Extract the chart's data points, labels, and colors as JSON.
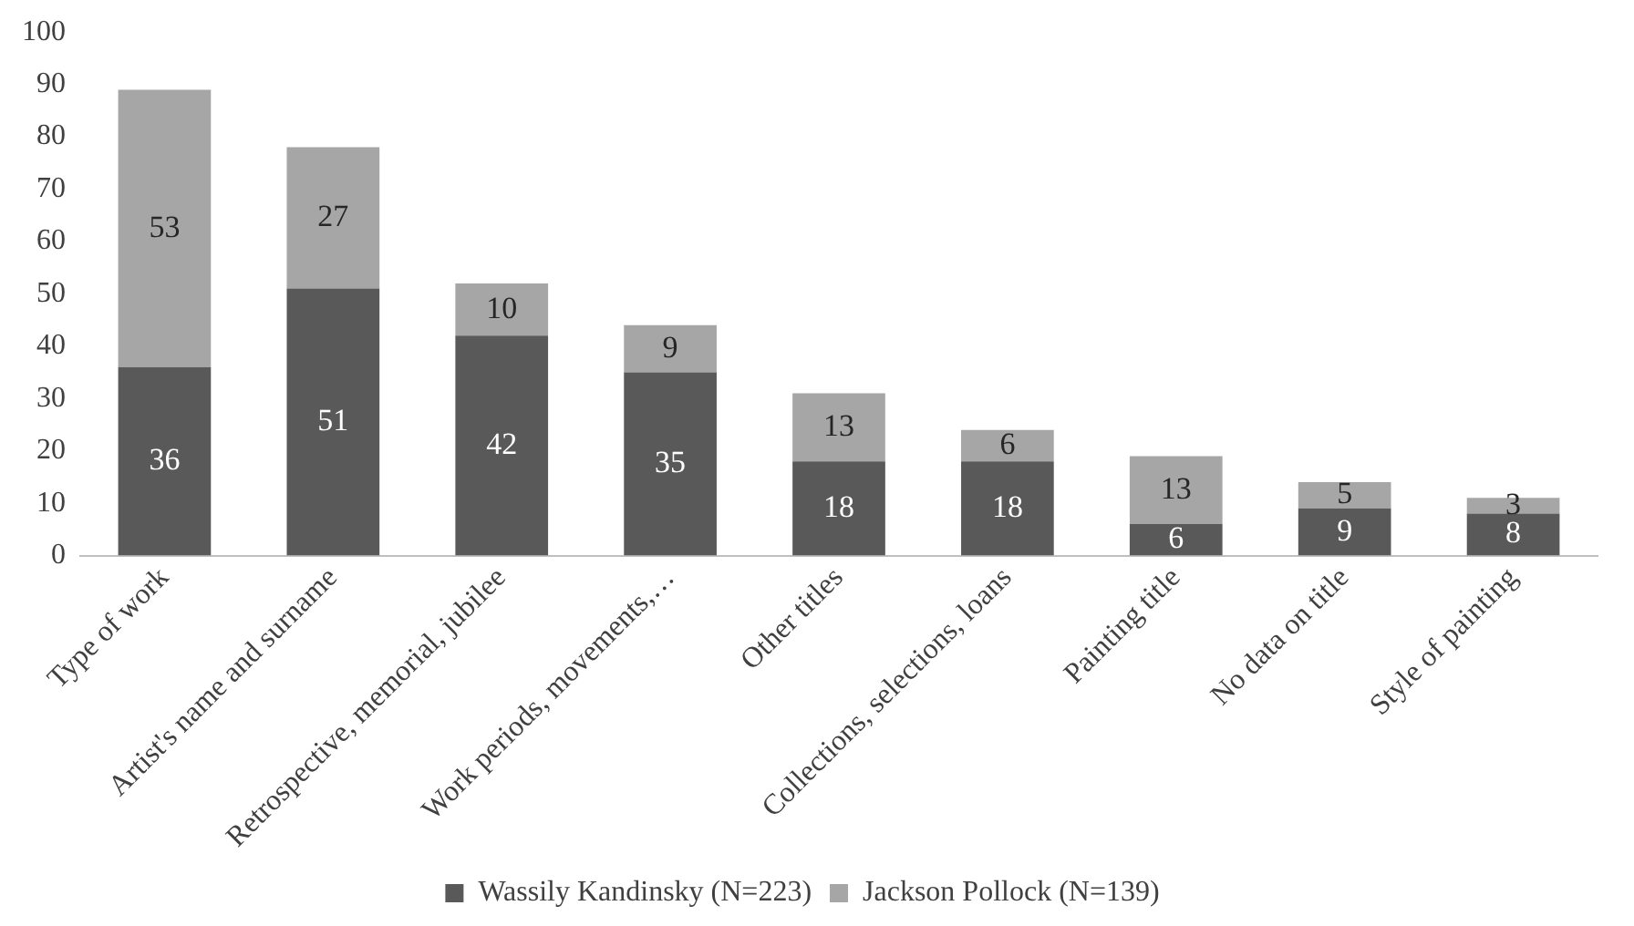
{
  "chart_data": {
    "type": "bar",
    "stacked": true,
    "categories": [
      "Type of work",
      "Artist's name and surname",
      "Retrospective, memorial, jubilee",
      "Work periods, movements,…",
      "Other titles",
      "Collections, selections, loans",
      "Painting title",
      "No data on title",
      "Style of painting"
    ],
    "series": [
      {
        "name": "Wassily Kandinsky (N=223)",
        "color": "#595959",
        "values": [
          36,
          51,
          42,
          35,
          18,
          18,
          6,
          9,
          8
        ]
      },
      {
        "name": "Jackson Pollock (N=139)",
        "color": "#a6a6a6",
        "values": [
          53,
          27,
          10,
          9,
          13,
          6,
          13,
          5,
          3
        ]
      }
    ],
    "ylim": [
      0,
      100
    ],
    "yticks": [
      0,
      10,
      20,
      30,
      40,
      50,
      60,
      70,
      80,
      90,
      100
    ],
    "grid": false,
    "legend": "bottom",
    "data_labels": true
  }
}
